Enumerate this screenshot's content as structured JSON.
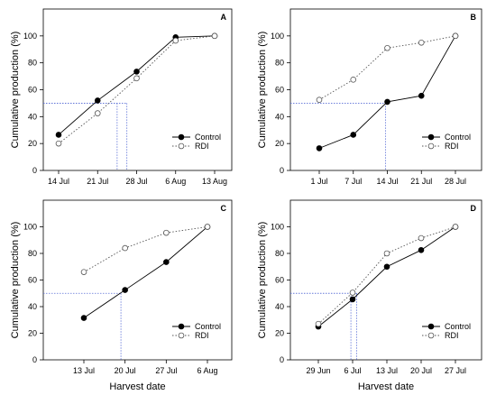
{
  "colors": {
    "control": "#000000",
    "rdi": "#555555",
    "guide": "#5b6fd6"
  },
  "chart_data": [
    {
      "panel": "A",
      "type": "line",
      "categories": [
        "14 Jul",
        "21 Jul",
        "28 Jul",
        "6 Aug",
        "13 Aug"
      ],
      "xlabel": "",
      "ylabel": "Cumulative production (%)",
      "ylim": [
        0,
        120
      ],
      "yticks": [
        0,
        20,
        40,
        60,
        80,
        100
      ],
      "legend_position": "lower-right",
      "grid": false,
      "series": [
        {
          "name": "Control",
          "style": "solid",
          "marker": "filled",
          "values": [
            26.5,
            52,
            73.5,
            99,
            100
          ]
        },
        {
          "name": "RDI",
          "style": "dotted",
          "marker": "open",
          "values": [
            20,
            42.5,
            68.5,
            96.5,
            100
          ]
        }
      ],
      "guides": [
        {
          "level": 50,
          "x": 1.5
        },
        {
          "level": 50,
          "x": 1.75
        }
      ]
    },
    {
      "panel": "B",
      "type": "line",
      "categories": [
        "1 Jul",
        "7 Jul",
        "14 Jul",
        "21 Jul",
        "28 Jul"
      ],
      "xlabel": "",
      "ylabel": "Cumulative production (%)",
      "ylim": [
        0,
        120
      ],
      "yticks": [
        0,
        20,
        40,
        60,
        80,
        100
      ],
      "legend_position": "lower-right",
      "grid": false,
      "series": [
        {
          "name": "Control",
          "style": "solid",
          "marker": "filled",
          "values": [
            16.5,
            26.5,
            51,
            55.5,
            100
          ]
        },
        {
          "name": "RDI",
          "style": "dotted",
          "marker": "open",
          "values": [
            52.5,
            67.5,
            91,
            95,
            100
          ]
        }
      ],
      "guides": [
        {
          "level": 50,
          "x": 1.95
        }
      ]
    },
    {
      "panel": "C",
      "type": "line",
      "categories": [
        "13 Jul",
        "20 Jul",
        "27 Jul",
        "6 Aug"
      ],
      "xlabel": "Harvest date",
      "ylabel": "Cumulative production (%)",
      "ylim": [
        0,
        120
      ],
      "yticks": [
        0,
        20,
        40,
        60,
        80,
        100
      ],
      "legend_position": "lower-right",
      "grid": false,
      "series": [
        {
          "name": "Control",
          "style": "solid",
          "marker": "filled",
          "values": [
            31.5,
            52.5,
            73.5,
            100
          ]
        },
        {
          "name": "RDI",
          "style": "dotted",
          "marker": "open",
          "values": [
            66,
            84,
            95.5,
            100
          ]
        }
      ],
      "guides": [
        {
          "level": 50,
          "x": 0.9
        }
      ]
    },
    {
      "panel": "D",
      "type": "line",
      "categories": [
        "29 Jun",
        "6 Jul",
        "13 Jul",
        "20 Jul",
        "27 Jul"
      ],
      "xlabel": "Harvest date",
      "ylabel": "Cumulative production (%)",
      "ylim": [
        0,
        120
      ],
      "yticks": [
        0,
        20,
        40,
        60,
        80,
        100
      ],
      "legend_position": "lower-right",
      "grid": false,
      "series": [
        {
          "name": "Control",
          "style": "solid",
          "marker": "filled",
          "values": [
            25,
            45.5,
            70,
            82.5,
            100
          ]
        },
        {
          "name": "RDI",
          "style": "dotted",
          "marker": "open",
          "values": [
            27,
            50.5,
            80,
            91.5,
            100
          ]
        }
      ],
      "guides": [
        {
          "level": 50,
          "x": 0.95
        },
        {
          "level": 50,
          "x": 1.12
        }
      ]
    }
  ]
}
